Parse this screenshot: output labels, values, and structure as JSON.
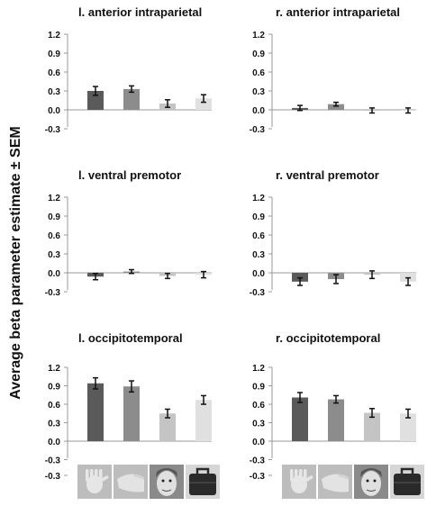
{
  "figure": {
    "ylabel": "Average beta parameter estimate ± SEM",
    "stimulus_icons": [
      "hand-icon",
      "foot-icon",
      "face-icon",
      "bag-icon"
    ]
  },
  "chart_data": [
    {
      "type": "bar",
      "title": "l. anterior intraparietal",
      "categories": [
        "hand",
        "foot",
        "face",
        "bag"
      ],
      "values": [
        0.3,
        0.33,
        0.1,
        0.18
      ],
      "errors": [
        0.07,
        0.05,
        0.06,
        0.06
      ],
      "yticks": [
        "1.2",
        "0.9",
        "0.6",
        "0.3",
        "0.0",
        "-0.3"
      ],
      "ylim": [
        -0.3,
        1.2
      ]
    },
    {
      "type": "bar",
      "title": "r. anterior intraparietal",
      "categories": [
        "hand",
        "foot",
        "face",
        "bag"
      ],
      "values": [
        0.03,
        0.09,
        -0.01,
        -0.01
      ],
      "errors": [
        0.04,
        0.03,
        0.04,
        0.04
      ],
      "yticks": [
        "1.2",
        "0.9",
        "0.6",
        "0.3",
        "0.0",
        "-0.3"
      ],
      "ylim": [
        -0.3,
        1.2
      ]
    },
    {
      "type": "bar",
      "title": "l. ventral premotor",
      "categories": [
        "hand",
        "foot",
        "face",
        "bag"
      ],
      "values": [
        -0.06,
        0.02,
        -0.05,
        -0.03
      ],
      "errors": [
        0.05,
        0.03,
        0.04,
        0.05
      ],
      "yticks": [
        "1.2",
        "0.9",
        "0.6",
        "0.3",
        "0.0",
        "-0.3"
      ],
      "ylim": [
        -0.3,
        1.2
      ]
    },
    {
      "type": "bar",
      "title": "r. ventral premotor",
      "categories": [
        "hand",
        "foot",
        "face",
        "bag"
      ],
      "values": [
        -0.14,
        -0.1,
        -0.03,
        -0.14
      ],
      "errors": [
        0.06,
        0.07,
        0.06,
        0.06
      ],
      "yticks": [
        "1.2",
        "0.9",
        "0.6",
        "0.3",
        "0.0",
        "-0.3"
      ],
      "ylim": [
        -0.3,
        1.2
      ]
    },
    {
      "type": "bar",
      "title": "l. occipitotemporal",
      "categories": [
        "hand",
        "foot",
        "face",
        "bag"
      ],
      "values": [
        0.94,
        0.89,
        0.45,
        0.67
      ],
      "errors": [
        0.09,
        0.09,
        0.07,
        0.07
      ],
      "yticks": [
        "1.2",
        "0.9",
        "0.6",
        "0.3",
        "0.0",
        "-0.3",
        "-0.3"
      ],
      "ylim": [
        -0.3,
        1.2
      ]
    },
    {
      "type": "bar",
      "title": "r. occipitotemporal",
      "categories": [
        "hand",
        "foot",
        "face",
        "bag"
      ],
      "values": [
        0.71,
        0.68,
        0.46,
        0.45
      ],
      "errors": [
        0.08,
        0.06,
        0.07,
        0.07
      ],
      "yticks": [
        "1.2",
        "0.9",
        "0.6",
        "0.3",
        "0.0",
        "-0.3",
        "-0.3"
      ],
      "ylim": [
        -0.3,
        1.2
      ]
    }
  ],
  "colors": {
    "bars": [
      "#5a5a5a",
      "#8c8c8c",
      "#c4c4c4",
      "#e0e0e0"
    ],
    "axis": "#999999",
    "text": "#111111",
    "error": "#111111"
  }
}
